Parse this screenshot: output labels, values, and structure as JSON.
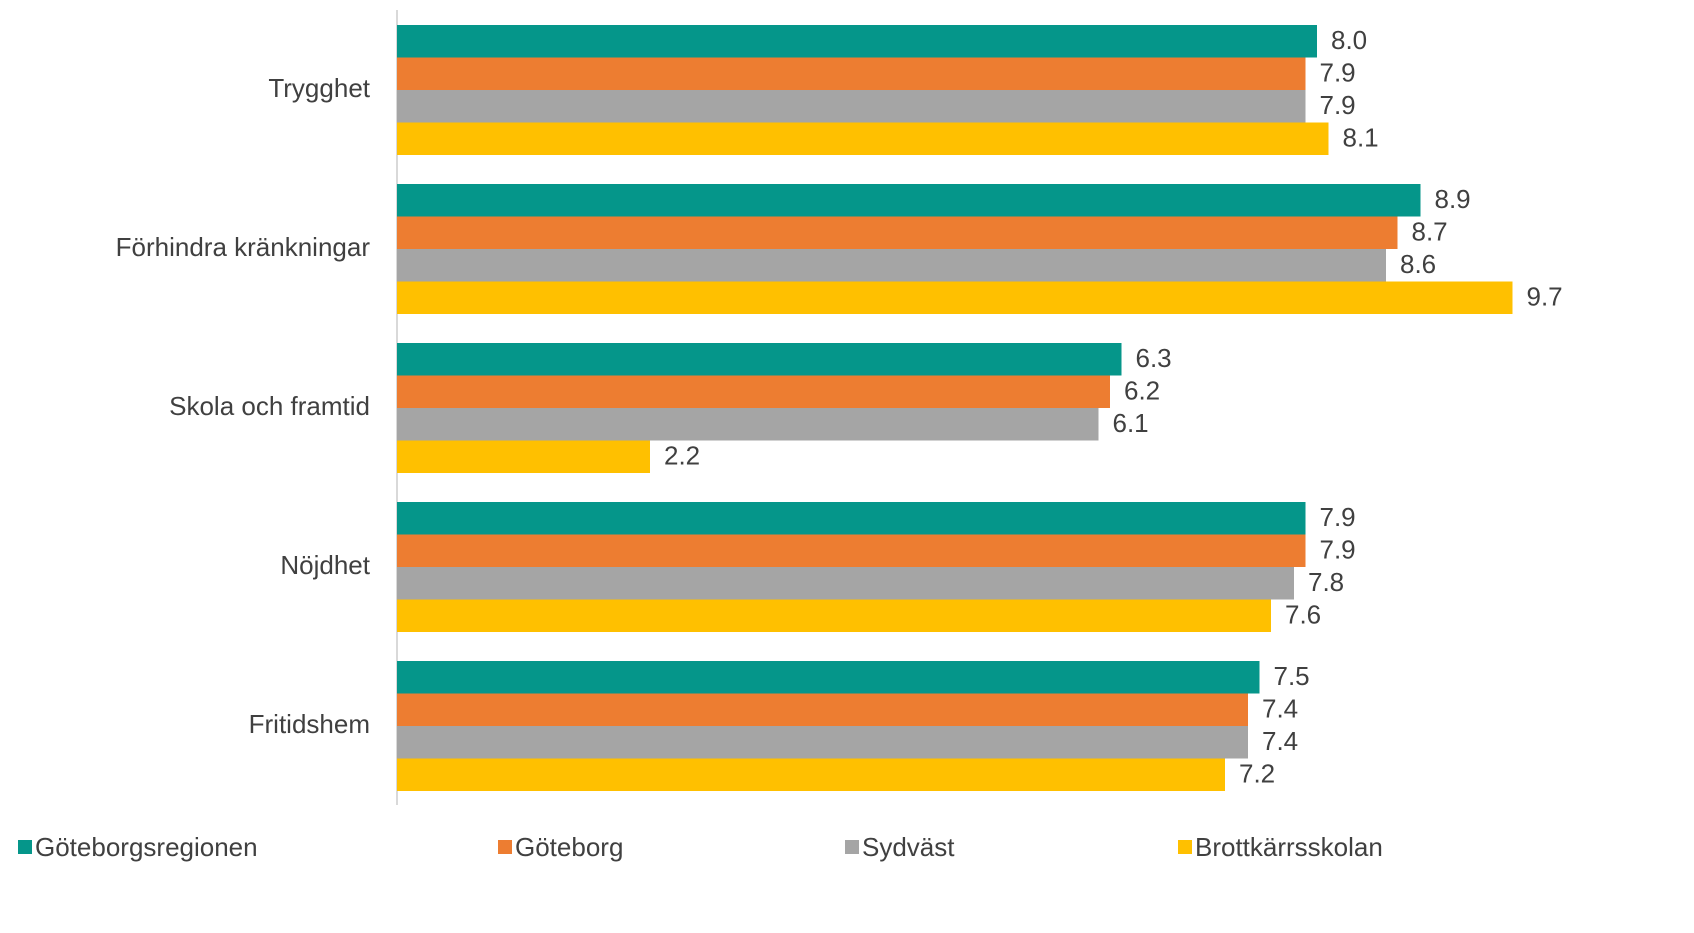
{
  "chart_data": {
    "type": "bar",
    "orientation": "horizontal",
    "categories": [
      "Trygghet",
      "Förhindra kränkningar",
      "Skola och framtid",
      "Nöjdhet",
      "Fritidshem"
    ],
    "series": [
      {
        "name": "Göteborgsregionen",
        "color": "#05968a",
        "values": [
          8.0,
          8.9,
          6.3,
          7.9,
          7.5
        ],
        "value_labels": [
          "8.0",
          "8.9",
          "6.3",
          "7.9",
          "7.5"
        ]
      },
      {
        "name": "Göteborg",
        "color": "#ed7d31",
        "values": [
          7.9,
          8.7,
          6.2,
          7.9,
          7.4
        ],
        "value_labels": [
          "7.9",
          "8.7",
          "6.2",
          "7.9",
          "7.4"
        ]
      },
      {
        "name": "Sydväst",
        "color": "#a5a5a5",
        "values": [
          7.9,
          8.6,
          6.1,
          7.8,
          7.4
        ],
        "value_labels": [
          "7.9",
          "8.6",
          "6.1",
          "7.8",
          "7.4"
        ]
      },
      {
        "name": "Brottkärrsskolan",
        "color": "#ffc000",
        "values": [
          8.1,
          9.7,
          2.2,
          7.6,
          7.2
        ],
        "value_labels": [
          "8.1",
          "9.7",
          "2.2",
          "7.6",
          "7.2"
        ]
      }
    ],
    "legend": "bottom"
  }
}
